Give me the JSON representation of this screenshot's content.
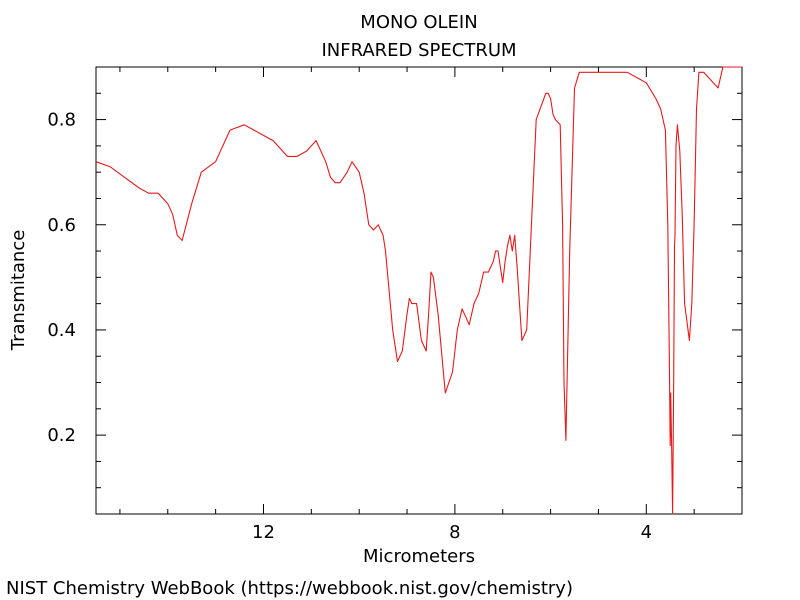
{
  "chart_data": {
    "type": "line",
    "title": "MONO OLEIN",
    "subtitle": "INFRARED SPECTRUM",
    "xlabel": "Micrometers",
    "ylabel": "Transmitance",
    "xlim": [
      15.5,
      2.0
    ],
    "ylim": [
      0.05,
      0.9
    ],
    "x_reversed": true,
    "xticks": [
      12,
      8,
      4
    ],
    "yticks": [
      0.2,
      0.4,
      0.6,
      0.8
    ],
    "grid": false,
    "line_color": "#e41a1c",
    "series": [
      {
        "x": [
          15.5,
          15.2,
          14.9,
          14.6,
          14.4,
          14.2,
          14.1,
          14.0,
          13.9,
          13.8,
          13.7,
          13.5,
          13.3,
          13.0,
          12.7,
          12.4,
          12.2,
          12.0,
          11.8,
          11.5,
          11.3,
          11.1,
          10.9,
          10.7,
          10.6,
          10.5,
          10.4,
          10.25,
          10.15,
          10.0,
          9.9,
          9.8,
          9.7,
          9.6,
          9.5,
          9.45,
          9.4,
          9.3,
          9.2,
          9.1,
          9.0,
          8.95,
          8.9,
          8.8,
          8.7,
          8.6,
          8.55,
          8.5,
          8.45,
          8.35,
          8.2,
          8.05,
          7.95,
          7.85,
          7.8,
          7.7,
          7.6,
          7.5,
          7.4,
          7.3,
          7.2,
          7.15,
          7.1,
          7.05,
          7.0,
          6.95,
          6.9,
          6.85,
          6.8,
          6.75,
          6.7,
          6.6,
          6.5,
          6.3,
          6.1,
          6.05,
          6.0,
          5.95,
          5.9,
          5.8,
          5.75,
          5.72,
          5.68,
          5.6,
          5.5,
          5.4,
          5.2,
          5.0,
          4.8,
          4.4,
          4.2,
          4.0,
          3.8,
          3.7,
          3.6,
          3.55,
          3.52,
          3.5,
          3.49,
          3.47,
          3.45,
          3.43,
          3.41,
          3.4,
          3.38,
          3.35,
          3.3,
          3.25,
          3.2,
          3.1,
          3.05,
          3.0,
          2.95,
          2.9,
          2.8,
          2.6,
          2.5,
          2.4,
          2.3,
          2.2,
          2.0
        ],
        "y": [
          0.72,
          0.71,
          0.69,
          0.67,
          0.66,
          0.66,
          0.65,
          0.64,
          0.62,
          0.58,
          0.57,
          0.64,
          0.7,
          0.72,
          0.78,
          0.79,
          0.78,
          0.77,
          0.76,
          0.73,
          0.73,
          0.74,
          0.76,
          0.72,
          0.69,
          0.68,
          0.68,
          0.7,
          0.72,
          0.7,
          0.66,
          0.6,
          0.59,
          0.6,
          0.58,
          0.55,
          0.5,
          0.4,
          0.34,
          0.36,
          0.43,
          0.46,
          0.45,
          0.45,
          0.38,
          0.36,
          0.43,
          0.51,
          0.5,
          0.43,
          0.28,
          0.32,
          0.4,
          0.44,
          0.43,
          0.41,
          0.45,
          0.47,
          0.51,
          0.51,
          0.53,
          0.55,
          0.55,
          0.52,
          0.49,
          0.53,
          0.56,
          0.58,
          0.55,
          0.58,
          0.52,
          0.38,
          0.4,
          0.8,
          0.85,
          0.85,
          0.84,
          0.81,
          0.8,
          0.79,
          0.6,
          0.3,
          0.19,
          0.55,
          0.86,
          0.89,
          0.89,
          0.89,
          0.89,
          0.89,
          0.88,
          0.87,
          0.84,
          0.82,
          0.78,
          0.6,
          0.35,
          0.18,
          0.28,
          0.17,
          0.05,
          0.28,
          0.56,
          0.58,
          0.75,
          0.79,
          0.74,
          0.62,
          0.45,
          0.38,
          0.45,
          0.6,
          0.82,
          0.89,
          0.89,
          0.87,
          0.86,
          0.9,
          0.9,
          0.9,
          0.9
        ]
      }
    ]
  },
  "footer": {
    "credit": "NIST Chemistry WebBook (https://webbook.nist.gov/chemistry)"
  }
}
